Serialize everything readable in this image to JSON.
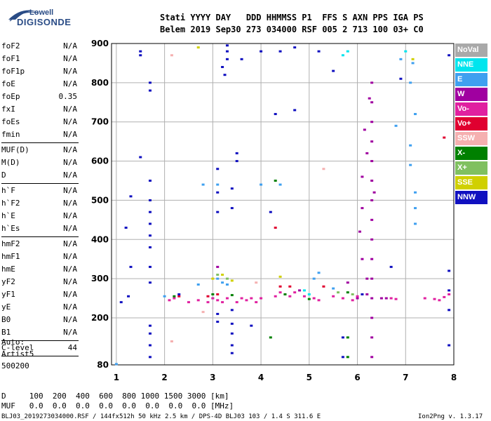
{
  "logo": {
    "line1": "Lowell",
    "line2": "DIGISONDE"
  },
  "header": {
    "line1": "Stati YYYY DAY   DDD HHMMSS P1  FFS S AXN PPS IGA PS",
    "line2": "Belem 2019 Sep30 273 034000 RSF 005 2 713 100 03+ C0"
  },
  "params": {
    "group1": [
      {
        "label": "foF2",
        "value": "N/A"
      },
      {
        "label": "foF1",
        "value": "N/A"
      },
      {
        "label": "foF1p",
        "value": "N/A"
      },
      {
        "label": "foE",
        "value": "N/A"
      },
      {
        "label": "foEp",
        "value": "0.35"
      },
      {
        "label": "fxI",
        "value": "N/A"
      },
      {
        "label": "foEs",
        "value": "N/A"
      },
      {
        "label": "fmin",
        "value": "N/A"
      }
    ],
    "group2": [
      {
        "label": "MUF(D)",
        "value": "N/A"
      },
      {
        "label": "M(D)",
        "value": "N/A"
      },
      {
        "label": "D",
        "value": "N/A"
      }
    ],
    "group3": [
      {
        "label": "h`F",
        "value": "N/A"
      },
      {
        "label": "h`F2",
        "value": "N/A"
      },
      {
        "label": "h`E",
        "value": "N/A"
      },
      {
        "label": "h`Es",
        "value": "N/A"
      }
    ],
    "group4": [
      {
        "label": "hmF2",
        "value": "N/A"
      },
      {
        "label": "hmF1",
        "value": "N/A"
      },
      {
        "label": "hmE",
        "value": "N/A"
      },
      {
        "label": "yF2",
        "value": "N/A"
      },
      {
        "label": "yF1",
        "value": "N/A"
      },
      {
        "label": "yE",
        "value": "N/A"
      },
      {
        "label": "B0",
        "value": "N/A"
      },
      {
        "label": "B1",
        "value": "N/A"
      }
    ],
    "clevel": {
      "label": "C-level",
      "value": "44"
    }
  },
  "auto": {
    "line1": "Auto:",
    "line2": "Artist5",
    "line3": "500200"
  },
  "legend": [
    {
      "label": "NoVal",
      "color": "#a9a9a9"
    },
    {
      "label": "NNE",
      "color": "#00e5ee"
    },
    {
      "label": "E",
      "color": "#3fa0f0"
    },
    {
      "label": "W",
      "color": "#a000a0"
    },
    {
      "label": "Vo-",
      "color": "#e020a0"
    },
    {
      "label": "Vo+",
      "color": "#e00030"
    },
    {
      "label": "SSW",
      "color": "#f5b0b0"
    },
    {
      "label": "X-",
      "color": "#008000"
    },
    {
      "label": "X+",
      "color": "#80c060"
    },
    {
      "label": "SSE",
      "color": "#d0d000"
    },
    {
      "label": "NNW",
      "color": "#1010c0"
    }
  ],
  "bottom": {
    "d_line": "D     100  200  400  600  800 1000 1500 3000 [km]",
    "muf_line": "MUF   0.0  0.0  0.0  0.0  0.0  0.0  0.0  0.0 [MHz]",
    "footer_left": "BLJ03_2019273034000.RSF / 144fx512h 50 kHz 2.5 km / DPS-4D BLJ03 103 / 1.4 S 311.6 E",
    "footer_right": "Ion2Png v. 1.3.17"
  },
  "chart_data": {
    "type": "scatter",
    "title": "",
    "xlabel": "",
    "ylabel": "",
    "xlim": [
      0.9,
      8.0
    ],
    "ylim": [
      80,
      900
    ],
    "xticks": [
      1,
      2,
      3,
      4,
      5,
      6,
      7,
      8
    ],
    "yticks": [
      80,
      200,
      300,
      400,
      500,
      600,
      700,
      800,
      900
    ],
    "grid": true,
    "legend_position": "right",
    "series": [
      {
        "name": "E",
        "color": "#3fa0f0",
        "points": [
          [
            1.0,
            82
          ],
          [
            2.0,
            255
          ],
          [
            2.7,
            285
          ],
          [
            3.1,
            300
          ],
          [
            3.2,
            290
          ],
          [
            3.3,
            285
          ],
          [
            2.8,
            540
          ],
          [
            3.1,
            540
          ],
          [
            4.0,
            540
          ],
          [
            4.4,
            540
          ],
          [
            5.1,
            300
          ],
          [
            5.2,
            315
          ],
          [
            5.5,
            275
          ],
          [
            6.9,
            860
          ],
          [
            7.1,
            640
          ],
          [
            7.2,
            520
          ],
          [
            7.2,
            480
          ],
          [
            7.2,
            440
          ],
          [
            7.1,
            590
          ],
          [
            7.2,
            720
          ],
          [
            7.1,
            800
          ],
          [
            7.15,
            850
          ],
          [
            6.8,
            690
          ]
        ]
      },
      {
        "name": "NNE",
        "color": "#00e5ee",
        "points": [
          [
            5.7,
            870
          ],
          [
            5.8,
            880
          ],
          [
            7.0,
            880
          ],
          [
            3.0,
            250
          ],
          [
            4.9,
            270
          ],
          [
            5.0,
            260
          ]
        ]
      },
      {
        "name": "W",
        "color": "#a000a0",
        "points": [
          [
            6.3,
            100
          ],
          [
            6.3,
            150
          ],
          [
            6.3,
            200
          ],
          [
            6.3,
            250
          ],
          [
            6.3,
            300
          ],
          [
            6.3,
            350
          ],
          [
            6.3,
            400
          ],
          [
            6.3,
            450
          ],
          [
            6.3,
            500
          ],
          [
            6.3,
            550
          ],
          [
            6.3,
            600
          ],
          [
            6.3,
            650
          ],
          [
            6.3,
            700
          ],
          [
            6.3,
            750
          ],
          [
            6.3,
            800
          ],
          [
            6.2,
            260
          ],
          [
            6.1,
            350
          ],
          [
            6.1,
            480
          ],
          [
            6.1,
            560
          ],
          [
            6.2,
            620
          ],
          [
            6.25,
            760
          ],
          [
            6.0,
            250
          ],
          [
            6.15,
            680
          ],
          [
            6.35,
            520
          ],
          [
            4.8,
            270
          ],
          [
            5.8,
            290
          ],
          [
            3.1,
            330
          ],
          [
            6.5,
            250
          ],
          [
            6.6,
            250
          ],
          [
            6.2,
            300
          ],
          [
            6.05,
            420
          ]
        ]
      },
      {
        "name": "Vo-",
        "color": "#e020a0",
        "points": [
          [
            2.1,
            245
          ],
          [
            2.2,
            250
          ],
          [
            2.5,
            240
          ],
          [
            2.7,
            245
          ],
          [
            2.9,
            240
          ],
          [
            3.0,
            250
          ],
          [
            3.1,
            245
          ],
          [
            3.2,
            240
          ],
          [
            3.3,
            250
          ],
          [
            3.5,
            240
          ],
          [
            3.6,
            250
          ],
          [
            3.7,
            245
          ],
          [
            3.8,
            250
          ],
          [
            3.9,
            240
          ],
          [
            4.0,
            250
          ],
          [
            4.3,
            255
          ],
          [
            4.4,
            265
          ],
          [
            4.5,
            260
          ],
          [
            4.6,
            255
          ],
          [
            4.7,
            265
          ],
          [
            4.9,
            255
          ],
          [
            5.1,
            250
          ],
          [
            5.2,
            245
          ],
          [
            5.5,
            255
          ],
          [
            5.7,
            250
          ],
          [
            5.9,
            245
          ],
          [
            6.0,
            255
          ],
          [
            6.7,
            250
          ],
          [
            6.8,
            248
          ],
          [
            7.4,
            250
          ],
          [
            7.6,
            248
          ],
          [
            7.7,
            245
          ],
          [
            7.8,
            253
          ],
          [
            7.9,
            260
          ]
        ]
      },
      {
        "name": "Vo+",
        "color": "#e00030",
        "points": [
          [
            2.9,
            255
          ],
          [
            3.1,
            260
          ],
          [
            4.4,
            280
          ],
          [
            4.3,
            430
          ],
          [
            4.6,
            280
          ],
          [
            5.3,
            280
          ],
          [
            7.8,
            660
          ],
          [
            2.3,
            255
          ]
        ]
      },
      {
        "name": "SSW",
        "color": "#f5b0b0",
        "points": [
          [
            2.15,
            140
          ],
          [
            2.15,
            870
          ],
          [
            3.9,
            290
          ],
          [
            5.3,
            580
          ],
          [
            2.8,
            215
          ]
        ]
      },
      {
        "name": "X-",
        "color": "#008000",
        "points": [
          [
            2.2,
            255
          ],
          [
            3.0,
            260
          ],
          [
            3.4,
            258
          ],
          [
            4.3,
            550
          ],
          [
            4.5,
            260
          ],
          [
            5.0,
            248
          ],
          [
            5.8,
            265
          ],
          [
            5.8,
            150
          ],
          [
            5.8,
            100
          ],
          [
            4.2,
            150
          ]
        ]
      },
      {
        "name": "X+",
        "color": "#80c060",
        "points": [
          [
            3.1,
            310
          ],
          [
            3.3,
            300
          ],
          [
            5.6,
            265
          ],
          [
            5.9,
            260
          ]
        ]
      },
      {
        "name": "SSE",
        "color": "#d0d000",
        "points": [
          [
            2.7,
            890
          ],
          [
            3.0,
            300
          ],
          [
            3.2,
            310
          ],
          [
            3.4,
            295
          ],
          [
            4.4,
            305
          ],
          [
            7.15,
            860
          ]
        ]
      },
      {
        "name": "NNW",
        "color": "#1010c0",
        "points": [
          [
            1.1,
            240
          ],
          [
            1.25,
            255
          ],
          [
            1.5,
            610
          ],
          [
            1.7,
            290
          ],
          [
            1.7,
            330
          ],
          [
            1.7,
            380
          ],
          [
            1.7,
            410
          ],
          [
            1.7,
            440
          ],
          [
            1.7,
            470
          ],
          [
            1.7,
            500
          ],
          [
            1.7,
            550
          ],
          [
            1.7,
            780
          ],
          [
            1.7,
            800
          ],
          [
            1.7,
            100
          ],
          [
            1.7,
            130
          ],
          [
            1.7,
            160
          ],
          [
            1.7,
            180
          ],
          [
            1.5,
            880
          ],
          [
            1.5,
            870
          ],
          [
            1.3,
            330
          ],
          [
            1.3,
            510
          ],
          [
            1.2,
            430
          ],
          [
            2.3,
            260
          ],
          [
            3.1,
            470
          ],
          [
            3.1,
            520
          ],
          [
            3.1,
            580
          ],
          [
            3.1,
            190
          ],
          [
            3.1,
            210
          ],
          [
            3.25,
            820
          ],
          [
            3.3,
            860
          ],
          [
            3.3,
            880
          ],
          [
            3.3,
            895
          ],
          [
            3.4,
            110
          ],
          [
            3.4,
            130
          ],
          [
            3.4,
            160
          ],
          [
            3.4,
            185
          ],
          [
            3.4,
            220
          ],
          [
            3.4,
            480
          ],
          [
            3.4,
            530
          ],
          [
            3.5,
            620
          ],
          [
            3.5,
            600
          ],
          [
            3.6,
            860
          ],
          [
            3.8,
            180
          ],
          [
            3.2,
            840
          ],
          [
            4.3,
            720
          ],
          [
            4.2,
            470
          ],
          [
            4.7,
            730
          ],
          [
            4.7,
            890
          ],
          [
            4.4,
            880
          ],
          [
            5.2,
            880
          ],
          [
            5.5,
            830
          ],
          [
            5.7,
            100
          ],
          [
            5.7,
            150
          ],
          [
            6.7,
            330
          ],
          [
            6.9,
            810
          ],
          [
            7.9,
            270
          ],
          [
            7.9,
            320
          ],
          [
            7.9,
            130
          ],
          [
            7.9,
            220
          ],
          [
            7.9,
            870
          ],
          [
            6.1,
            260
          ],
          [
            4.0,
            880
          ]
        ]
      }
    ]
  }
}
